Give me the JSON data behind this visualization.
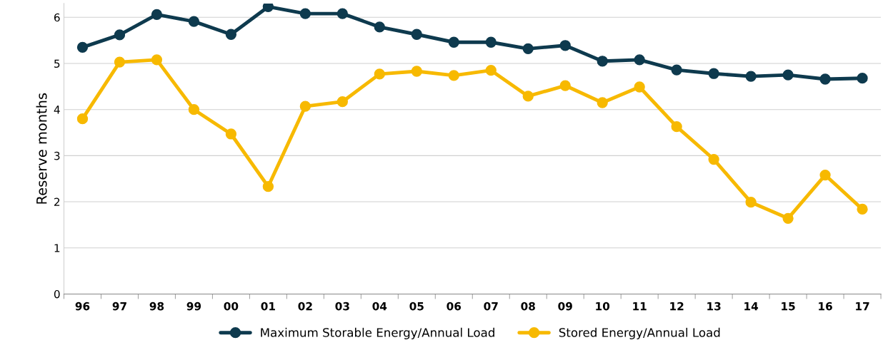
{
  "chart_data": {
    "type": "line",
    "ylabel": "Reserve months",
    "categories": [
      "96",
      "97",
      "98",
      "99",
      "00",
      "01",
      "02",
      "03",
      "04",
      "05",
      "06",
      "07",
      "08",
      "09",
      "10",
      "11",
      "12",
      "13",
      "14",
      "15",
      "16",
      "17"
    ],
    "series": [
      {
        "name": "Maximum Storable Energy/Annual Load",
        "color": "#0e3a4e",
        "values": [
          5.35,
          5.62,
          6.06,
          5.91,
          5.63,
          6.23,
          6.08,
          6.08,
          5.79,
          5.63,
          5.46,
          5.46,
          5.32,
          5.39,
          5.05,
          5.08,
          4.86,
          4.78,
          4.72,
          4.75,
          4.66,
          4.68
        ]
      },
      {
        "name": "Stored Energy/Annual Load",
        "color": "#f7b900",
        "values": [
          3.8,
          5.03,
          5.08,
          4.0,
          3.47,
          2.33,
          4.07,
          4.17,
          4.77,
          4.83,
          4.74,
          4.85,
          4.29,
          4.52,
          4.15,
          4.49,
          3.63,
          2.92,
          1.99,
          1.64,
          2.58,
          1.84
        ]
      }
    ],
    "ylim": [
      0,
      6.3
    ],
    "yticks": [
      0,
      1,
      2,
      3,
      4,
      5,
      6
    ],
    "grid": "y",
    "legend": "bottom",
    "marker": "circle",
    "line_style": "solid"
  }
}
